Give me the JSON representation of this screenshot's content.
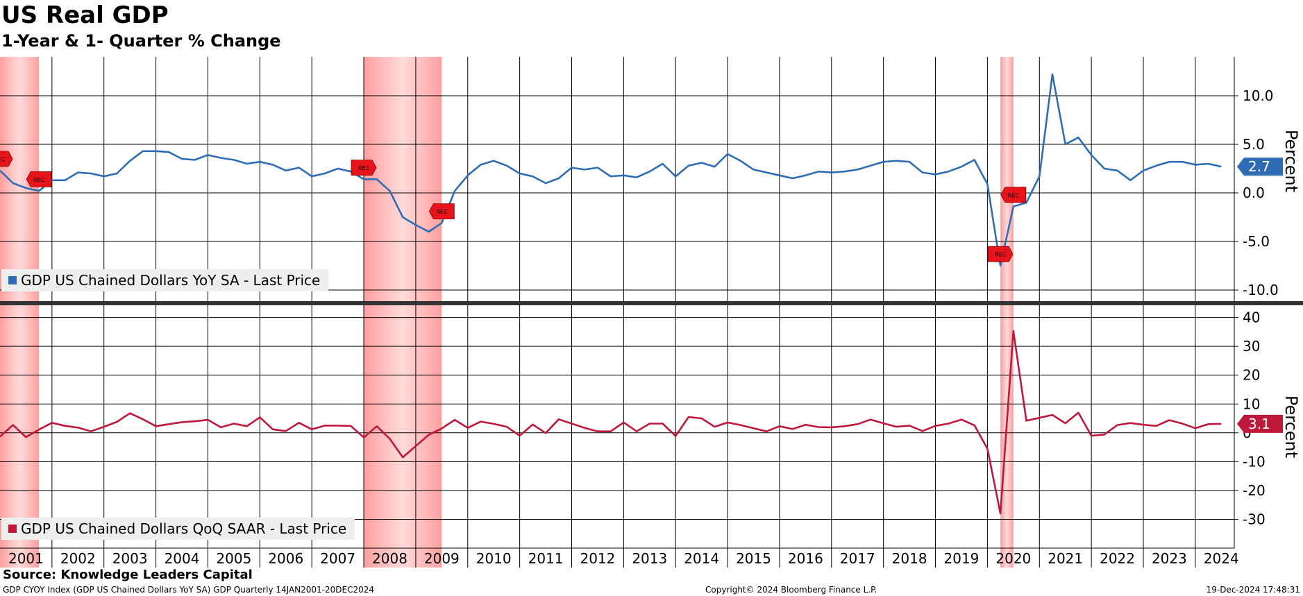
{
  "chart_data": [
    {
      "type": "line",
      "title": "US Real GDP",
      "subtitle": "1-Year & 1- Quarter % Change",
      "ylabel": "Percent",
      "ylim": [
        -11,
        14
      ],
      "yticks": [
        -10,
        -5,
        0,
        5,
        10
      ],
      "ytick_labels": [
        "-10.0",
        "-5.0",
        "0.0",
        "5.0",
        "10.0"
      ],
      "last_value_label": "2.7",
      "color": "#2E6DB4",
      "series": [
        {
          "name": "GDP US Chained Dollars YoY SA - Last Price",
          "x": [
            2001.0,
            2001.25,
            2001.5,
            2001.75,
            2002.0,
            2002.25,
            2002.5,
            2002.75,
            2003.0,
            2003.25,
            2003.5,
            2003.75,
            2004.0,
            2004.25,
            2004.5,
            2004.75,
            2005.0,
            2005.25,
            2005.5,
            2005.75,
            2006.0,
            2006.25,
            2006.5,
            2006.75,
            2007.0,
            2007.25,
            2007.5,
            2007.75,
            2008.0,
            2008.25,
            2008.5,
            2008.75,
            2009.0,
            2009.25,
            2009.5,
            2009.75,
            2010.0,
            2010.25,
            2010.5,
            2010.75,
            2011.0,
            2011.25,
            2011.5,
            2011.75,
            2012.0,
            2012.25,
            2012.5,
            2012.75,
            2013.0,
            2013.25,
            2013.5,
            2013.75,
            2014.0,
            2014.25,
            2014.5,
            2014.75,
            2015.0,
            2015.25,
            2015.5,
            2015.75,
            2016.0,
            2016.25,
            2016.5,
            2016.75,
            2017.0,
            2017.25,
            2017.5,
            2017.75,
            2018.0,
            2018.25,
            2018.5,
            2018.75,
            2019.0,
            2019.25,
            2019.5,
            2019.75,
            2020.0,
            2020.25,
            2020.5,
            2020.75,
            2021.0,
            2021.25,
            2021.5,
            2021.75,
            2022.0,
            2022.25,
            2022.5,
            2022.75,
            2023.0,
            2023.25,
            2023.5,
            2023.75,
            2024.0,
            2024.25,
            2024.5
          ],
          "values": [
            2.3,
            1.0,
            0.5,
            0.2,
            1.3,
            1.3,
            2.1,
            2.0,
            1.7,
            2.0,
            3.3,
            4.3,
            4.3,
            4.2,
            3.5,
            3.4,
            3.9,
            3.6,
            3.4,
            3.0,
            3.2,
            2.9,
            2.3,
            2.6,
            1.7,
            2.0,
            2.5,
            2.2,
            1.4,
            1.4,
            0.2,
            -2.5,
            -3.3,
            -4.0,
            -3.1,
            0.2,
            1.8,
            2.9,
            3.3,
            2.8,
            2.0,
            1.7,
            1.0,
            1.5,
            2.6,
            2.4,
            2.6,
            1.7,
            1.8,
            1.6,
            2.2,
            3.0,
            1.7,
            2.8,
            3.1,
            2.7,
            4.0,
            3.3,
            2.4,
            2.1,
            1.8,
            1.5,
            1.8,
            2.2,
            2.1,
            2.2,
            2.4,
            2.8,
            3.2,
            3.3,
            3.2,
            2.1,
            1.9,
            2.2,
            2.7,
            3.4,
            0.9,
            -7.5,
            -1.4,
            -1.0,
            1.7,
            12.2,
            5.0,
            5.7,
            3.9,
            2.5,
            2.3,
            1.3,
            2.3,
            2.8,
            3.2,
            3.2,
            2.9,
            3.0,
            2.7
          ]
        }
      ]
    },
    {
      "type": "line",
      "ylabel": "Percent",
      "ylim": [
        -40,
        44
      ],
      "yticks": [
        -30,
        -20,
        -10,
        0,
        10,
        20,
        30,
        40
      ],
      "ytick_labels": [
        "-30",
        "-20",
        "-10",
        "0",
        "10",
        "20",
        "30",
        "40"
      ],
      "last_value_label": "3.1",
      "color": "#C0183A",
      "series": [
        {
          "name": "GDP US Chained Dollars QoQ SAAR - Last Price",
          "x": [
            2001.0,
            2001.25,
            2001.5,
            2001.75,
            2002.0,
            2002.25,
            2002.5,
            2002.75,
            2003.0,
            2003.25,
            2003.5,
            2003.75,
            2004.0,
            2004.25,
            2004.5,
            2004.75,
            2005.0,
            2005.25,
            2005.5,
            2005.75,
            2006.0,
            2006.25,
            2006.5,
            2006.75,
            2007.0,
            2007.25,
            2007.5,
            2007.75,
            2008.0,
            2008.25,
            2008.5,
            2008.75,
            2009.0,
            2009.25,
            2009.5,
            2009.75,
            2010.0,
            2010.25,
            2010.5,
            2010.75,
            2011.0,
            2011.25,
            2011.5,
            2011.75,
            2012.0,
            2012.25,
            2012.5,
            2012.75,
            2013.0,
            2013.25,
            2013.5,
            2013.75,
            2014.0,
            2014.25,
            2014.5,
            2014.75,
            2015.0,
            2015.25,
            2015.5,
            2015.75,
            2016.0,
            2016.25,
            2016.5,
            2016.75,
            2017.0,
            2017.25,
            2017.5,
            2017.75,
            2018.0,
            2018.25,
            2018.5,
            2018.75,
            2019.0,
            2019.25,
            2019.5,
            2019.75,
            2020.0,
            2020.25,
            2020.5,
            2020.75,
            2021.0,
            2021.25,
            2021.5,
            2021.75,
            2022.0,
            2022.25,
            2022.5,
            2022.75,
            2023.0,
            2023.25,
            2023.5,
            2023.75,
            2024.0,
            2024.25,
            2024.5
          ],
          "values": [
            -1.3,
            2.7,
            -1.5,
            1.1,
            3.5,
            2.4,
            1.8,
            0.5,
            2.1,
            3.8,
            6.8,
            4.7,
            2.3,
            3.0,
            3.7,
            4.0,
            4.5,
            1.9,
            3.2,
            2.3,
            5.4,
            1.2,
            0.6,
            3.5,
            1.2,
            2.5,
            2.5,
            2.4,
            -1.6,
            2.3,
            -2.1,
            -8.5,
            -4.6,
            -0.7,
            1.5,
            4.5,
            1.7,
            3.9,
            3.1,
            2.1,
            -1.0,
            2.9,
            -0.1,
            4.7,
            3.2,
            1.7,
            0.5,
            0.5,
            3.6,
            0.5,
            3.2,
            3.2,
            -1.1,
            5.5,
            5.0,
            2.1,
            3.6,
            2.7,
            1.6,
            0.5,
            2.3,
            1.3,
            2.8,
            2.0,
            1.9,
            2.3,
            3.0,
            4.6,
            3.3,
            2.1,
            2.5,
            0.6,
            2.4,
            3.2,
            4.6,
            2.6,
            -5.5,
            -28.0,
            35.3,
            4.2,
            5.2,
            6.2,
            3.3,
            7.0,
            -1.0,
            -0.6,
            2.7,
            3.4,
            2.8,
            2.4,
            4.4,
            3.2,
            1.6,
            3.0,
            3.1
          ]
        }
      ]
    }
  ],
  "x_axis": {
    "tick_labels": [
      "2001",
      "2002",
      "2003",
      "2004",
      "2005",
      "2006",
      "2007",
      "2008",
      "2009",
      "2010",
      "2011",
      "2012",
      "2013",
      "2014",
      "2015",
      "2016",
      "2017",
      "2018",
      "2019",
      "2020",
      "2021",
      "2022",
      "2023",
      "2024"
    ],
    "range": [
      2001.0,
      2024.75
    ],
    "grid": true
  },
  "recessions": [
    [
      2001.0,
      2001.75
    ],
    [
      2008.0,
      2009.5
    ],
    [
      2020.25,
      2020.5
    ]
  ],
  "recession_marker_label": "REC",
  "recession_color": "#FF9999",
  "source_text": "Source: Knowledge Leaders Capital",
  "footer_left": "GDP CYOY Index (GDP US Chained Dollars YoY SA) GDP  Quarterly 14JAN2001-20DEC2024",
  "footer_mid": "Copyright© 2024 Bloomberg Finance L.P.",
  "footer_right": "19-Dec-2024 17:48:31"
}
